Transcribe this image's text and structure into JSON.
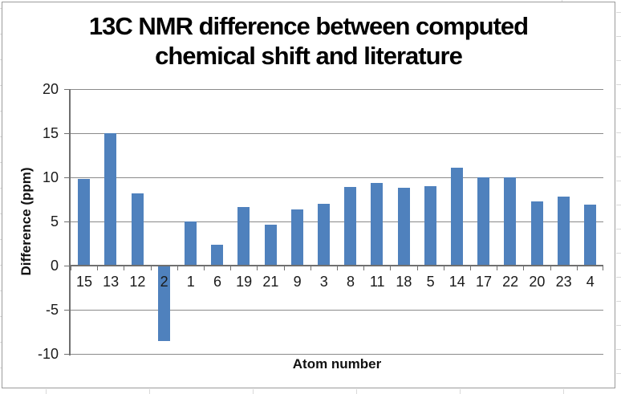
{
  "chart_data": {
    "type": "bar",
    "title": "13C NMR difference between computed chemical shift and literature",
    "title_lines": [
      "13C NMR difference between computed",
      "chemical shift and literature"
    ],
    "xlabel": "Atom number",
    "ylabel": "Difference (ppm)",
    "categories": [
      "15",
      "13",
      "12",
      "2",
      "1",
      "6",
      "19",
      "21",
      "9",
      "3",
      "8",
      "11",
      "18",
      "5",
      "14",
      "17",
      "22",
      "20",
      "23",
      "4"
    ],
    "values": [
      9.8,
      15.0,
      8.2,
      -8.5,
      5.0,
      2.4,
      6.6,
      4.6,
      6.4,
      7.0,
      8.9,
      9.4,
      8.8,
      9.0,
      11.1,
      10.0,
      10.0,
      7.3,
      7.8,
      6.9
    ],
    "ylim": [
      -10,
      20
    ],
    "yticks": [
      -10,
      -5,
      0,
      5,
      10,
      15,
      20
    ],
    "grid": true,
    "legend_position": "none",
    "bar_color": "#4F81BD",
    "gridline_color": "#8a8a8a",
    "axis_color": "#6f6f6f",
    "text_color": "#1a1a1a"
  }
}
